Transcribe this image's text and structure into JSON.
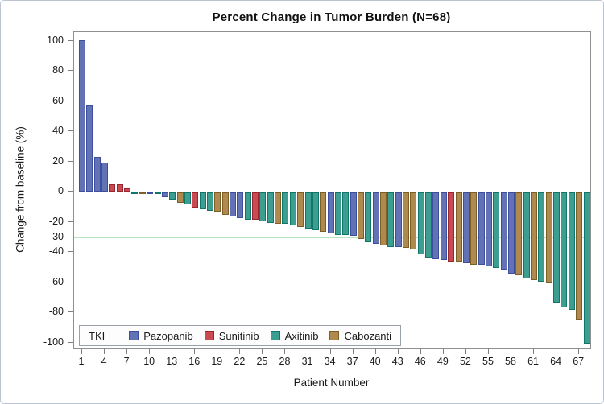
{
  "title": "Percent Change in Tumor Burden (N=68)",
  "y_axis": {
    "label": "Change from baseline (%)",
    "ticks": [
      100,
      80,
      60,
      40,
      20,
      0,
      -20,
      -30,
      -40,
      -60,
      -80,
      -100
    ]
  },
  "x_axis": {
    "label": "Patient Number",
    "ticks": [
      1,
      4,
      7,
      10,
      13,
      16,
      19,
      22,
      25,
      28,
      31,
      34,
      37,
      40,
      43,
      46,
      49,
      52,
      55,
      58,
      61,
      64,
      67
    ]
  },
  "legend": {
    "title": "TKI",
    "entries": [
      {
        "label": "Pazopanib",
        "fill": "#6372b5",
        "border": "#3c4f9e"
      },
      {
        "label": "Sunitinib",
        "fill": "#ca4a51",
        "border": "#99262e"
      },
      {
        "label": "Axitinib",
        "fill": "#3b9e91",
        "border": "#0f7669"
      },
      {
        "label": "Cabozanti",
        "fill": "#b0894f",
        "border": "#7c5f27"
      }
    ]
  },
  "reference_line": {
    "value": -30,
    "color": "#b6e2bf"
  },
  "chart_data": {
    "type": "bar",
    "title": "Percent Change in Tumor Burden (N=68)",
    "xlabel": "Patient Number",
    "ylabel": "Change from baseline (%)",
    "ylim": [
      -103,
      106
    ],
    "grid": false,
    "legend_position": "bottom-left-inside",
    "reference_line_y": -30,
    "patients": [
      {
        "id": 1,
        "value": 100,
        "drug": "Pazopanib"
      },
      {
        "id": 2,
        "value": 57,
        "drug": "Pazopanib"
      },
      {
        "id": 3,
        "value": 23,
        "drug": "Pazopanib"
      },
      {
        "id": 4,
        "value": 19,
        "drug": "Pazopanib"
      },
      {
        "id": 5,
        "value": 5,
        "drug": "Sunitinib"
      },
      {
        "id": 6,
        "value": 5,
        "drug": "Sunitinib"
      },
      {
        "id": 7,
        "value": 2,
        "drug": "Sunitinib"
      },
      {
        "id": 8,
        "value": 0,
        "drug": "Axitinib"
      },
      {
        "id": 9,
        "value": 0,
        "drug": "Cabozanti"
      },
      {
        "id": 10,
        "value": 0,
        "drug": "Pazopanib"
      },
      {
        "id": 11,
        "value": -1,
        "drug": "Axitinib"
      },
      {
        "id": 12,
        "value": -3,
        "drug": "Pazopanib"
      },
      {
        "id": 13,
        "value": -5,
        "drug": "Axitinib"
      },
      {
        "id": 14,
        "value": -7,
        "drug": "Cabozanti"
      },
      {
        "id": 15,
        "value": -8,
        "drug": "Axitinib"
      },
      {
        "id": 16,
        "value": -10,
        "drug": "Sunitinib"
      },
      {
        "id": 17,
        "value": -11,
        "drug": "Axitinib"
      },
      {
        "id": 18,
        "value": -12,
        "drug": "Axitinib"
      },
      {
        "id": 19,
        "value": -13,
        "drug": "Cabozanti"
      },
      {
        "id": 20,
        "value": -15,
        "drug": "Cabozanti"
      },
      {
        "id": 21,
        "value": -16,
        "drug": "Pazopanib"
      },
      {
        "id": 22,
        "value": -17,
        "drug": "Pazopanib"
      },
      {
        "id": 23,
        "value": -18,
        "drug": "Axitinib"
      },
      {
        "id": 24,
        "value": -18,
        "drug": "Sunitinib"
      },
      {
        "id": 25,
        "value": -19,
        "drug": "Axitinib"
      },
      {
        "id": 26,
        "value": -20,
        "drug": "Axitinib"
      },
      {
        "id": 27,
        "value": -21,
        "drug": "Cabozanti"
      },
      {
        "id": 28,
        "value": -21,
        "drug": "Axitinib"
      },
      {
        "id": 29,
        "value": -22,
        "drug": "Axitinib"
      },
      {
        "id": 30,
        "value": -23,
        "drug": "Cabozanti"
      },
      {
        "id": 31,
        "value": -24,
        "drug": "Axitinib"
      },
      {
        "id": 32,
        "value": -25,
        "drug": "Axitinib"
      },
      {
        "id": 33,
        "value": -26,
        "drug": "Cabozanti"
      },
      {
        "id": 34,
        "value": -27,
        "drug": "Pazopanib"
      },
      {
        "id": 35,
        "value": -28,
        "drug": "Axitinib"
      },
      {
        "id": 36,
        "value": -28,
        "drug": "Axitinib"
      },
      {
        "id": 37,
        "value": -29,
        "drug": "Pazopanib"
      },
      {
        "id": 38,
        "value": -31,
        "drug": "Cabozanti"
      },
      {
        "id": 39,
        "value": -33,
        "drug": "Axitinib"
      },
      {
        "id": 40,
        "value": -34,
        "drug": "Pazopanib"
      },
      {
        "id": 41,
        "value": -35,
        "drug": "Cabozanti"
      },
      {
        "id": 42,
        "value": -36,
        "drug": "Axitinib"
      },
      {
        "id": 43,
        "value": -36,
        "drug": "Pazopanib"
      },
      {
        "id": 44,
        "value": -37,
        "drug": "Cabozanti"
      },
      {
        "id": 45,
        "value": -38,
        "drug": "Cabozanti"
      },
      {
        "id": 46,
        "value": -41,
        "drug": "Axitinib"
      },
      {
        "id": 47,
        "value": -43,
        "drug": "Axitinib"
      },
      {
        "id": 48,
        "value": -44,
        "drug": "Pazopanib"
      },
      {
        "id": 49,
        "value": -45,
        "drug": "Pazopanib"
      },
      {
        "id": 50,
        "value": -46,
        "drug": "Sunitinib"
      },
      {
        "id": 51,
        "value": -46,
        "drug": "Cabozanti"
      },
      {
        "id": 52,
        "value": -47,
        "drug": "Pazopanib"
      },
      {
        "id": 53,
        "value": -48,
        "drug": "Cabozanti"
      },
      {
        "id": 54,
        "value": -48,
        "drug": "Pazopanib"
      },
      {
        "id": 55,
        "value": -49,
        "drug": "Pazopanib"
      },
      {
        "id": 56,
        "value": -50,
        "drug": "Axitinib"
      },
      {
        "id": 57,
        "value": -51,
        "drug": "Pazopanib"
      },
      {
        "id": 58,
        "value": -54,
        "drug": "Pazopanib"
      },
      {
        "id": 59,
        "value": -55,
        "drug": "Cabozanti"
      },
      {
        "id": 60,
        "value": -57,
        "drug": "Axitinib"
      },
      {
        "id": 61,
        "value": -58,
        "drug": "Cabozanti"
      },
      {
        "id": 62,
        "value": -59,
        "drug": "Axitinib"
      },
      {
        "id": 63,
        "value": -60,
        "drug": "Cabozanti"
      },
      {
        "id": 64,
        "value": -73,
        "drug": "Axitinib"
      },
      {
        "id": 65,
        "value": -76,
        "drug": "Axitinib"
      },
      {
        "id": 66,
        "value": -78,
        "drug": "Axitinib"
      },
      {
        "id": 67,
        "value": -85,
        "drug": "Cabozanti"
      },
      {
        "id": 68,
        "value": -100,
        "drug": "Axitinib"
      }
    ]
  }
}
